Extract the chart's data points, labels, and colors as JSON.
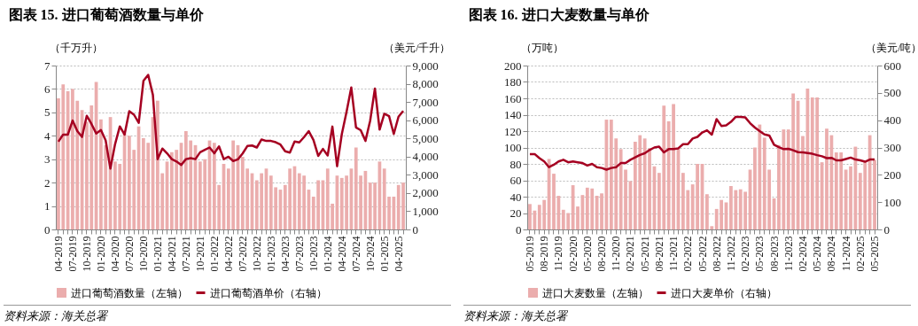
{
  "chart_data": [
    {
      "type": "bar",
      "title": "图表 15. 进口葡萄酒数量与单价",
      "ylabel": "（千万升）",
      "y2label": "（美元/千升）",
      "annotations": [
        "资料来源：海关总署"
      ],
      "categories": [
        "04-2019",
        null,
        null,
        "07-2019",
        null,
        null,
        "10-2019",
        null,
        null,
        "01-2020",
        null,
        null,
        "04-2020",
        null,
        null,
        "07-2020",
        null,
        null,
        "10-2020",
        null,
        null,
        "01-2021",
        null,
        null,
        "04-2021",
        null,
        null,
        "07-2021",
        null,
        null,
        "10-2021",
        null,
        null,
        "01-2022",
        null,
        null,
        "04-2022",
        null,
        null,
        "07-2022",
        null,
        null,
        "10-2022",
        null,
        null,
        "01-2023",
        null,
        null,
        "04-2023",
        null,
        null,
        "07-2023",
        null,
        null,
        "10-2023",
        null,
        null,
        "01-2024",
        null,
        null,
        "04-2024",
        null,
        null,
        "07-2024",
        null,
        null,
        "10-2024",
        null,
        null,
        "01-2025",
        null,
        null,
        "04-2025",
        null
      ],
      "series": [
        {
          "name": "进口葡萄酒数量（左轴）",
          "color": "#ebadad",
          "values": [
            5.6,
            6.2,
            5.9,
            6.0,
            5.5,
            5.1,
            4.6,
            5.3,
            6.3,
            4.7,
            3.6,
            4.8,
            2.9,
            2.8,
            4.1,
            4.0,
            3.4,
            4.4,
            3.9,
            3.7,
            4.8,
            5.5,
            2.4,
            2.9,
            3.3,
            3.4,
            3.7,
            4.2,
            3.8,
            3.6,
            2.9,
            3.0,
            3.8,
            3.7,
            1.9,
            2.8,
            2.6,
            3.8,
            3.6,
            3.1,
            2.6,
            2.4,
            2.1,
            2.4,
            2.6,
            2.3,
            1.8,
            1.7,
            1.9,
            2.6,
            2.7,
            2.4,
            2.3,
            1.7,
            1.4,
            2.1,
            2.1,
            2.6,
            1.1,
            2.3,
            2.2,
            2.3,
            2.6,
            3.5,
            2.3,
            2.5,
            2.0,
            2.0,
            2.9,
            2.6,
            1.4,
            1.4,
            1.9,
            2.0
          ]
        },
        {
          "name": "进口葡萄酒单价（右轴）",
          "type": "line",
          "axis": "y2",
          "color": "#a50021",
          "values": [
            4820,
            5210,
            5210,
            5980,
            5400,
            5080,
            6240,
            5790,
            5270,
            5460,
            4890,
            3340,
            4690,
            5660,
            5210,
            6490,
            6300,
            5850,
            8160,
            8490,
            7390,
            3860,
            4440,
            4180,
            3860,
            3730,
            3540,
            3860,
            3920,
            3860,
            4240,
            4370,
            4500,
            4180,
            4560,
            3860,
            3990,
            3760,
            3850,
            4170,
            4580,
            4610,
            4500,
            4940,
            4860,
            4860,
            4790,
            4660,
            4290,
            4220,
            4830,
            4780,
            5070,
            5400,
            4910,
            4040,
            4420,
            4060,
            5650,
            3470,
            5240,
            6460,
            7800,
            5600,
            5450,
            4860,
            5970,
            7740,
            5480,
            6350,
            6220,
            5240,
            6190,
            6510
          ]
        }
      ],
      "ylim": [
        0,
        7
      ],
      "yticks": [
        0,
        1,
        2,
        3,
        4,
        5,
        6,
        7
      ],
      "y2lim": [
        0,
        9000
      ],
      "y2ticks": [
        0,
        {
          "value": 1000,
          "label": "1,000"
        },
        {
          "value": 2000,
          "label": "2,000"
        },
        {
          "value": 3000,
          "label": "3,000"
        },
        {
          "value": 4000,
          "label": "4,000"
        },
        {
          "value": 5000,
          "label": "5,000"
        },
        {
          "value": 6000,
          "label": "6,000"
        },
        {
          "value": 7000,
          "label": "7,000"
        },
        {
          "value": 8000,
          "label": "8,000"
        },
        {
          "value": 9000,
          "label": "9,000"
        }
      ],
      "grid": "y",
      "legend": "bottom"
    },
    {
      "type": "bar",
      "title": "图表 16. 进口大麦数量与单价",
      "ylabel": "（万吨）",
      "y2label": "（美元/吨）",
      "annotations": [
        "资料来源：海关总署"
      ],
      "categories": [
        "05-2019",
        null,
        null,
        "08-2019",
        null,
        null,
        "11-2019",
        null,
        null,
        "02-2020",
        null,
        null,
        "05-2020",
        null,
        null,
        "08-2020",
        null,
        null,
        "11-2020",
        null,
        null,
        "02-2021",
        null,
        null,
        "05-2021",
        null,
        null,
        "08-2021",
        null,
        null,
        "11-2021",
        null,
        null,
        "02-2022",
        null,
        null,
        "05-2022",
        null,
        null,
        "08-2022",
        null,
        null,
        "11-2022",
        null,
        null,
        "02-2023",
        null,
        null,
        "05-2023",
        null,
        null,
        "08-2023",
        null,
        null,
        "11-2023",
        null,
        null,
        "02-2024",
        null,
        null,
        "05-2024",
        null,
        null,
        "08-2024",
        null,
        null,
        "11-2024",
        null,
        null,
        "02-2025",
        null,
        null,
        "05-2025"
      ],
      "series": [
        {
          "name": "进口大麦数量（左轴）",
          "color": "#ebadad",
          "values": [
            31,
            23,
            30,
            36,
            86,
            68,
            41,
            24,
            20,
            54,
            28,
            42,
            51,
            50,
            41,
            44,
            134,
            134,
            111,
            98,
            73,
            59,
            107,
            115,
            111,
            99,
            77,
            69,
            151,
            132,
            153,
            99,
            69,
            48,
            55,
            80,
            80,
            43,
            4,
            25,
            36,
            33,
            53,
            48,
            49,
            46,
            73,
            100,
            128,
            112,
            73,
            38,
            103,
            122,
            122,
            166,
            157,
            114,
            172,
            161,
            161,
            82,
            123,
            115,
            94,
            94,
            73,
            77,
            101,
            69,
            83,
            115,
            85
          ]
        },
        {
          "name": "进口大麦单价（右轴）",
          "type": "line",
          "axis": "y2",
          "color": "#a50021",
          "values": [
            276,
            276,
            261,
            249,
            228,
            237,
            249,
            255,
            246,
            249,
            246,
            243,
            234,
            240,
            228,
            225,
            219,
            225,
            228,
            243,
            243,
            255,
            264,
            273,
            279,
            291,
            300,
            303,
            282,
            294,
            294,
            297,
            312,
            312,
            333,
            339,
            355,
            363,
            347,
            404,
            379,
            381,
            394,
            412,
            412,
            410,
            389,
            373,
            360,
            348,
            344,
            310,
            301,
            294,
            295,
            290,
            283,
            282,
            280,
            277,
            272,
            268,
            261,
            262,
            253,
            253,
            258,
            263,
            256,
            253,
            248,
            256,
            256
          ]
        }
      ],
      "ylim": [
        0,
        200
      ],
      "yticks": [
        0,
        20,
        40,
        60,
        80,
        100,
        120,
        140,
        160,
        180,
        200
      ],
      "y2lim": [
        0,
        600
      ],
      "y2ticks": [
        0,
        100,
        200,
        300,
        400,
        500,
        600
      ],
      "grid": "y",
      "legend": "bottom"
    }
  ]
}
